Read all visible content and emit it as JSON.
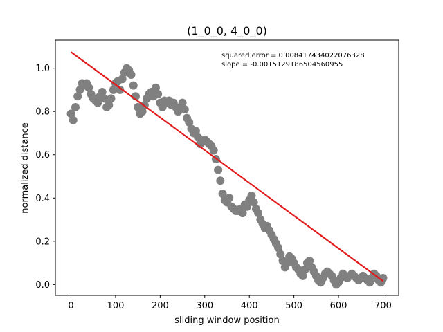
{
  "chart_data": {
    "type": "scatter",
    "title": "(1_0_0, 4_0_0)",
    "xlabel": "sliding window position",
    "ylabel": "normalized distance",
    "xlim": [
      -35,
      735
    ],
    "ylim": [
      -0.05,
      1.13
    ],
    "xticks": [
      0,
      100,
      200,
      300,
      400,
      500,
      600,
      700
    ],
    "yticks": [
      0.0,
      0.2,
      0.4,
      0.6,
      0.8,
      1.0
    ],
    "ytick_labels": [
      "0.0",
      "0.2",
      "0.4",
      "0.6",
      "0.8",
      "1.0"
    ],
    "annotations": [
      "squared error = 0.008417434022076328",
      "slope = -0.0015129186504560955"
    ],
    "grid": false,
    "point_color": "#808080",
    "line_color": "#e31a1c",
    "fit_line": {
      "x": [
        0,
        700
      ],
      "y": [
        1.075,
        0.016
      ]
    },
    "points": {
      "x": [
        0,
        5,
        10,
        15,
        20,
        25,
        30,
        35,
        40,
        45,
        50,
        55,
        60,
        65,
        70,
        75,
        80,
        85,
        90,
        95,
        100,
        105,
        110,
        115,
        120,
        125,
        130,
        135,
        140,
        145,
        150,
        155,
        160,
        165,
        170,
        175,
        180,
        185,
        190,
        195,
        200,
        205,
        210,
        215,
        220,
        225,
        230,
        235,
        240,
        245,
        250,
        255,
        260,
        265,
        270,
        275,
        280,
        285,
        290,
        295,
        300,
        305,
        310,
        315,
        320,
        325,
        330,
        335,
        340,
        345,
        350,
        355,
        360,
        365,
        370,
        375,
        380,
        385,
        390,
        395,
        400,
        405,
        410,
        415,
        420,
        425,
        430,
        435,
        440,
        445,
        450,
        455,
        460,
        465,
        470,
        475,
        480,
        485,
        490,
        495,
        500,
        505,
        510,
        515,
        520,
        525,
        530,
        535,
        540,
        545,
        550,
        555,
        560,
        565,
        570,
        575,
        580,
        585,
        590,
        595,
        600,
        605,
        610,
        615,
        620,
        625,
        630,
        635,
        640,
        645,
        650,
        655,
        660,
        665,
        670,
        675,
        680,
        685,
        690,
        695,
        700
      ],
      "y": [
        0.79,
        0.76,
        0.82,
        0.87,
        0.9,
        0.93,
        0.92,
        0.93,
        0.91,
        0.88,
        0.86,
        0.85,
        0.84,
        0.87,
        0.89,
        0.86,
        0.82,
        0.83,
        0.86,
        0.9,
        0.93,
        0.94,
        0.9,
        0.95,
        0.98,
        1.0,
        0.99,
        0.97,
        0.92,
        0.87,
        0.82,
        0.79,
        0.8,
        0.83,
        0.86,
        0.88,
        0.89,
        0.87,
        0.91,
        0.88,
        0.84,
        0.82,
        0.85,
        0.84,
        0.85,
        0.83,
        0.84,
        0.82,
        0.8,
        0.82,
        0.84,
        0.81,
        0.77,
        0.75,
        0.72,
        0.7,
        0.71,
        0.68,
        0.65,
        0.66,
        0.67,
        0.66,
        0.65,
        0.64,
        0.62,
        0.58,
        0.53,
        0.48,
        0.42,
        0.39,
        0.38,
        0.4,
        0.36,
        0.35,
        0.34,
        0.34,
        0.35,
        0.33,
        0.37,
        0.36,
        0.39,
        0.41,
        0.38,
        0.35,
        0.33,
        0.3,
        0.28,
        0.26,
        0.27,
        0.25,
        0.23,
        0.21,
        0.19,
        0.17,
        0.14,
        0.11,
        0.08,
        0.1,
        0.13,
        0.12,
        0.1,
        0.08,
        0.07,
        0.05,
        0.04,
        0.07,
        0.1,
        0.11,
        0.08,
        0.06,
        0.04,
        0.02,
        0.01,
        0.03,
        0.05,
        0.06,
        0.05,
        0.04,
        0.02,
        0.0,
        0.01,
        0.03,
        0.05,
        0.04,
        0.03,
        0.04,
        0.05,
        0.04,
        0.03,
        0.02,
        0.03,
        0.04,
        0.03,
        0.02,
        0.01,
        0.03,
        0.05,
        0.04,
        0.02,
        0.01,
        0.03
      ]
    }
  }
}
